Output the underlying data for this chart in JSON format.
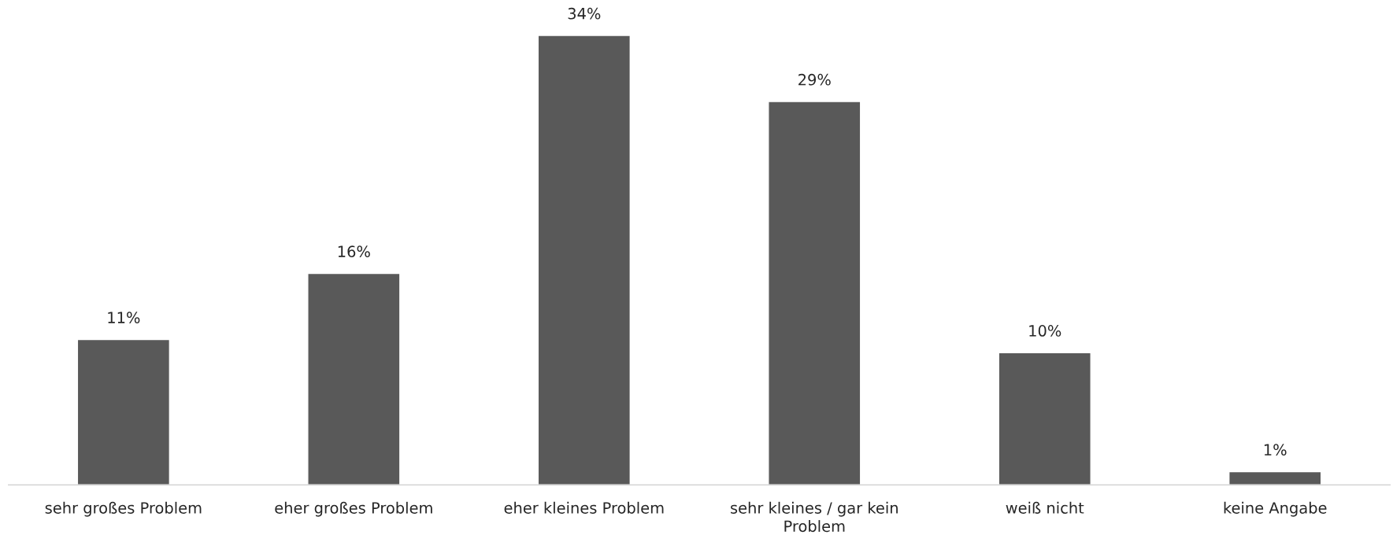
{
  "chart_data": {
    "type": "bar",
    "categories": [
      "sehr großes Problem",
      "eher großes Problem",
      "eher kleines Problem",
      "sehr kleines / gar kein Problem",
      "weiß nicht",
      "keine Angabe"
    ],
    "values": [
      11,
      16,
      34,
      29,
      10,
      1
    ],
    "value_labels": [
      "11%",
      "16%",
      "34%",
      "29%",
      "10%",
      "1%"
    ],
    "color": "#595959",
    "grid": false,
    "legend": false
  }
}
